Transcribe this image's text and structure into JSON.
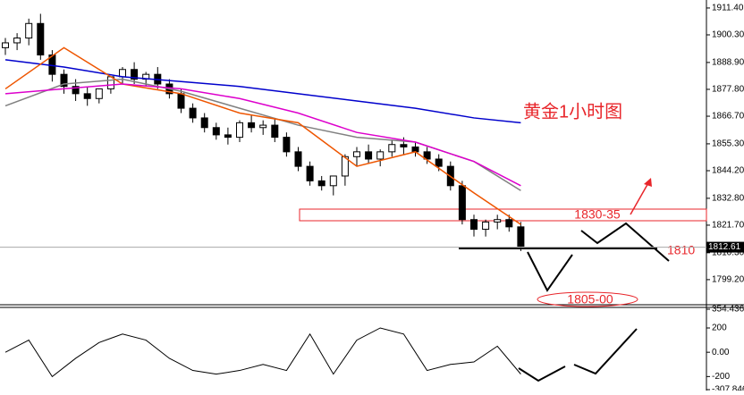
{
  "chart_data": [
    {
      "type": "candlestick",
      "title": "黄金1小时图",
      "open": [
        1895,
        1897,
        1899,
        1905,
        1892,
        1884,
        1879,
        1876,
        1874,
        1878,
        1883,
        1886,
        1882,
        1884,
        1880,
        1876,
        1870,
        1866,
        1862,
        1859,
        1858,
        1864,
        1862,
        1863,
        1858,
        1852,
        1846,
        1840,
        1838,
        1842,
        1850,
        1852,
        1849,
        1852,
        1855,
        1854,
        1852,
        1849,
        1846,
        1838,
        1824,
        1820,
        1823,
        1824,
        1821
      ],
      "high": [
        1899,
        1901,
        1907,
        1909,
        1894,
        1886,
        1882,
        1879,
        1878,
        1882,
        1887,
        1889,
        1885,
        1887,
        1882,
        1878,
        1872,
        1868,
        1864,
        1862,
        1865,
        1867,
        1865,
        1866,
        1860,
        1854,
        1848,
        1842,
        1841,
        1851,
        1854,
        1855,
        1853,
        1857,
        1858,
        1856,
        1854,
        1851,
        1848,
        1840,
        1826,
        1824,
        1826,
        1826,
        1823
      ],
      "low": [
        1892,
        1894,
        1896,
        1890,
        1881,
        1876,
        1873,
        1871,
        1872,
        1876,
        1880,
        1880,
        1879,
        1878,
        1874,
        1868,
        1864,
        1860,
        1857,
        1855,
        1856,
        1860,
        1859,
        1856,
        1850,
        1844,
        1838,
        1836,
        1834,
        1838,
        1846,
        1847,
        1846,
        1850,
        1851,
        1850,
        1847,
        1844,
        1836,
        1822,
        1817,
        1817,
        1820,
        1819,
        1811
      ],
      "close": [
        1897,
        1899,
        1905,
        1892,
        1884,
        1879,
        1876,
        1874,
        1878,
        1883,
        1886,
        1882,
        1884,
        1880,
        1876,
        1870,
        1866,
        1862,
        1859,
        1858,
        1864,
        1862,
        1863,
        1858,
        1852,
        1846,
        1840,
        1838,
        1842,
        1850,
        1852,
        1849,
        1852,
        1855,
        1854,
        1852,
        1849,
        1846,
        1838,
        1824,
        1820,
        1823,
        1824,
        1821,
        1813
      ],
      "series": [
        {
          "color": "#0000cc",
          "x": [
            0,
            5,
            10,
            15,
            20,
            25,
            30,
            35,
            40,
            44
          ],
          "values": [
            1890,
            1887,
            1883,
            1881,
            1879,
            1876,
            1873,
            1870,
            1866,
            1864
          ]
        },
        {
          "color": "#808080",
          "x": [
            0,
            5,
            10,
            15,
            20,
            25,
            30,
            35,
            40,
            44
          ],
          "values": [
            1871,
            1880,
            1882,
            1877,
            1870,
            1863,
            1858,
            1856,
            1848,
            1836
          ]
        },
        {
          "color": "#ee5500",
          "x": [
            0,
            5,
            10,
            15,
            20,
            25,
            30,
            35,
            40,
            44
          ],
          "values": [
            1878,
            1895,
            1880,
            1876,
            1868,
            1864,
            1846,
            1852,
            1835,
            1822
          ]
        },
        {
          "color": "#dd00cc",
          "x": [
            0,
            5,
            10,
            15,
            20,
            25,
            30,
            35,
            40,
            44
          ],
          "values": [
            1876,
            1878,
            1880,
            1878,
            1874,
            1868,
            1860,
            1856,
            1848,
            1838
          ]
        }
      ],
      "current_price": 1812.61,
      "ylim": [
        1789.2,
        1914.7
      ],
      "yticks": [
        {
          "value": 1911.4,
          "label": "1911.40"
        },
        {
          "value": 1900.3,
          "label": "1900.30"
        },
        {
          "value": 1888.9,
          "label": "1888.90"
        },
        {
          "value": 1877.8,
          "label": "1877.80"
        },
        {
          "value": 1866.7,
          "label": "1866.70"
        },
        {
          "value": 1855.3,
          "label": "1855.30"
        },
        {
          "value": 1844.2,
          "label": "1844.20"
        },
        {
          "value": 1832.8,
          "label": "1832.80"
        },
        {
          "value": 1821.7,
          "label": "1821.70"
        },
        {
          "value": 1810.3,
          "label": "1810.30"
        },
        {
          "value": 1799.2,
          "label": "1799.20"
        }
      ],
      "annotations": [
        "1830-35",
        "1810",
        "1805-00"
      ]
    },
    {
      "type": "line",
      "x": [
        0,
        2,
        4,
        6,
        8,
        10,
        12,
        14,
        16,
        18,
        20,
        22,
        24,
        26,
        28,
        30,
        32,
        34,
        36,
        38,
        40,
        42,
        44
      ],
      "values": [
        0,
        100,
        -200,
        -50,
        80,
        150,
        100,
        -50,
        -150,
        -180,
        -150,
        -100,
        -150,
        150,
        -180,
        100,
        200,
        150,
        -150,
        -100,
        -80,
        50,
        -180
      ],
      "color": "#000000",
      "ylim": [
        -307.846,
        354.4362
      ],
      "yticks": [
        354.4362,
        200,
        {
          "value": 0,
          "label": "0.00"
        },
        -200,
        -307.846
      ]
    }
  ]
}
